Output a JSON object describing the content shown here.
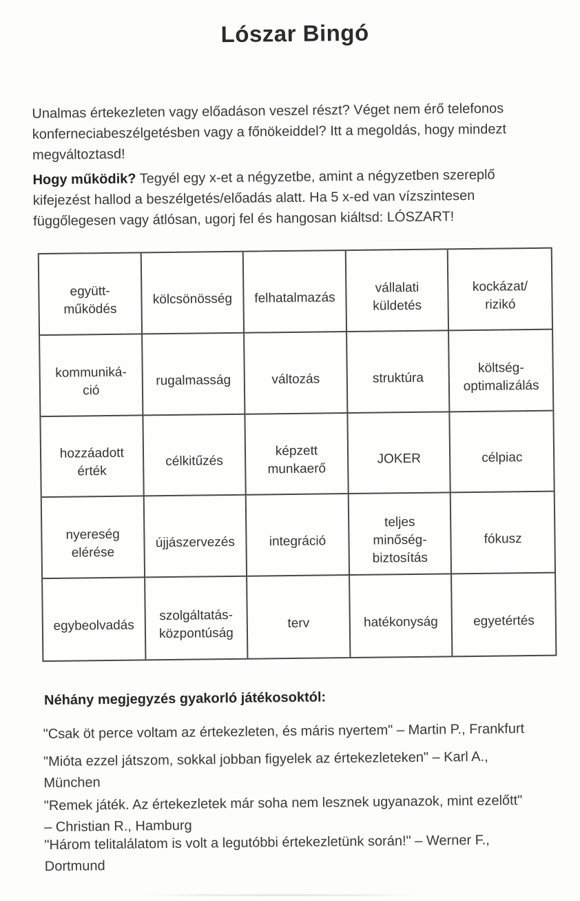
{
  "document": {
    "title": "Lószar Bingó",
    "intro": "Unalmas értekezleten vagy előadáson veszel részt? Véget nem érő telefonos\nkonferneciabeszélgetésben vagy a főnökeiddel? Itt a megoldás, hogy mindezt\nmegváltoztasd!",
    "how_label": "Hogy működik?",
    "how_text": " Tegyél egy x-et a négyzetbe, amint a négyzetben szereplő\nkifejezést hallod a beszélgetés/előadás alatt. Ha 5 x-ed van vízszintesen\nfüggőlegesen vagy átlósan, ugorj fel és hangosan kiáltsd: LÓSZART!"
  },
  "bingo": {
    "rows": [
      [
        "együtt-\nműködés",
        "kölcsönösség",
        "felhatalmazás",
        "vállalati\nküldetés",
        "kockázat/\nrizikó"
      ],
      [
        "kommuniká-\nció",
        "rugalmasság",
        "változás",
        "struktúra",
        "költség-\noptimalizálás"
      ],
      [
        "hozzáadott\nérték",
        "célkitűzés",
        "képzett\nmunkaerő",
        "JOKER",
        "célpiac"
      ],
      [
        "nyereség\nelérése",
        "újjászervezés",
        "integráció",
        "teljes\nminőség-\nbiztosítás",
        "fókusz"
      ],
      [
        "egybeolvadás",
        "szolgáltatás-\nközpontúság",
        "terv",
        "hatékonyság",
        "egyetértés"
      ]
    ]
  },
  "testimonials": {
    "heading": "Néhány megjegyzés gyakorló játékosoktól:",
    "quotes": [
      "\"Csak öt perce voltam az értekezleten, és máris nyertem\" – Martin P., Frankfurt",
      "\"Mióta ezzel játszom, sokkal jobban figyelek az értekezleteken\" – Karl A.,\nMünchen",
      "\"Remek játék. Az értekezletek már soha nem lesznek ugyanazok, mint ezelőtt\"\n– Christian R., Hamburg",
      "\"Három telitalálatom is volt  a legutóbbi értekezletünk során!\" – Werner F.,\nDortmund"
    ]
  },
  "colors": {
    "text": "#3a3a3a",
    "heading_text": "#2b2b2b",
    "table_border": "#474747",
    "paper": "#fdfdfc"
  }
}
